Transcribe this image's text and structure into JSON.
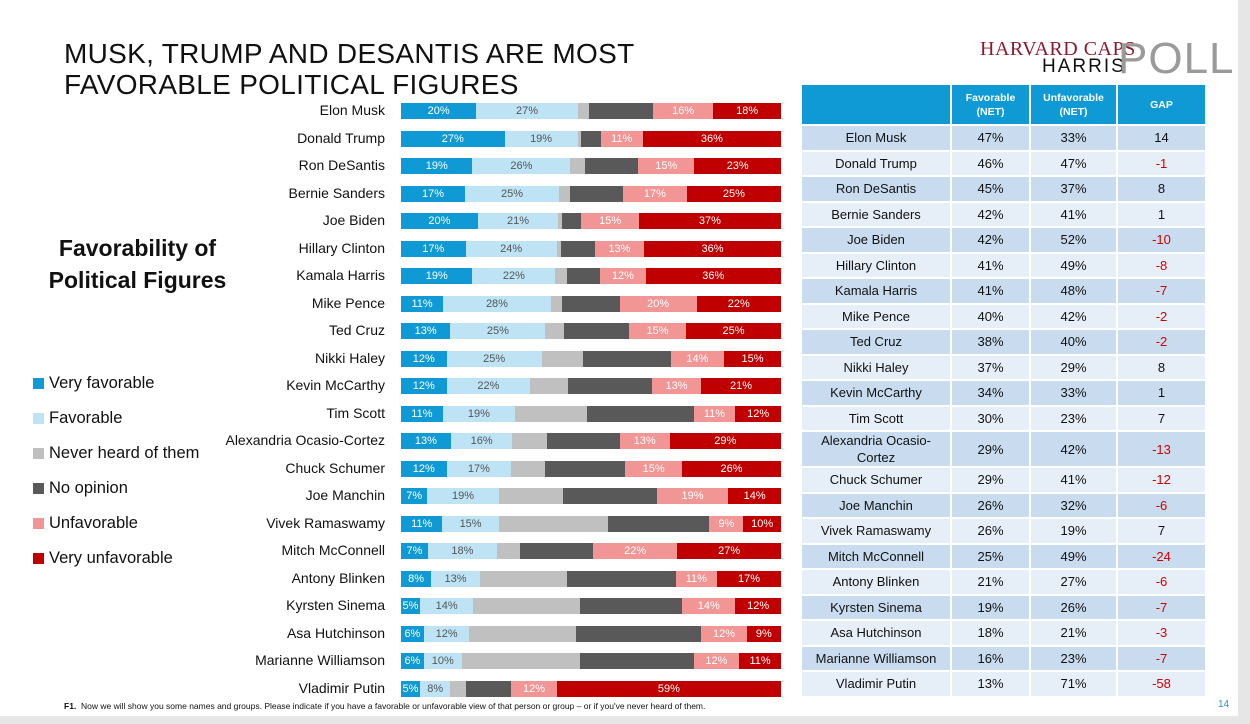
{
  "title": "MUSK, TRUMP AND DESANTIS ARE MOST FAVORABLE POLITICAL FIGURES",
  "logo": {
    "line1": "HARVARD CAPS",
    "line2": "HARRIS",
    "line3": "POLL"
  },
  "subtitle": "Favorability of Political Figures",
  "colors": {
    "very_favorable": "#0F9AD6",
    "favorable": "#BDE3F5",
    "never_heard": "#C0C0C0",
    "no_opinion": "#595959",
    "unfavorable": "#F29595",
    "very_unfavorable": "#C00000",
    "table_header": "#0F9AD6",
    "negative_gap": "#D00000"
  },
  "chart_data": {
    "type": "bar",
    "orientation": "horizontal-stacked-100",
    "title": "Favorability of Political Figures",
    "legend_position": "left",
    "series_names": [
      "Very favorable",
      "Favorable",
      "Never heard of them",
      "No opinion",
      "Unfavorable",
      "Very unfavorable"
    ],
    "categories": [
      "Elon Musk",
      "Donald Trump",
      "Ron DeSantis",
      "Bernie Sanders",
      "Joe Biden",
      "Hillary Clinton",
      "Kamala Harris",
      "Mike Pence",
      "Ted Cruz",
      "Nikki Haley",
      "Kevin McCarthy",
      "Tim Scott",
      "Alexandria Ocasio-Cortez",
      "Chuck Schumer",
      "Joe Manchin",
      "Vivek Ramaswamy",
      "Mitch McConnell",
      "Antony Blinken",
      "Kyrsten Sinema",
      "Asa Hutchinson",
      "Marianne Williamson",
      "Vladimir Putin"
    ],
    "series": [
      {
        "name": "Very favorable",
        "values": [
          20,
          27,
          19,
          17,
          20,
          17,
          19,
          11,
          13,
          12,
          12,
          11,
          13,
          12,
          7,
          11,
          7,
          8,
          5,
          6,
          6,
          5
        ],
        "labeled": true
      },
      {
        "name": "Favorable",
        "values": [
          27,
          19,
          26,
          25,
          21,
          24,
          22,
          28,
          25,
          25,
          22,
          19,
          16,
          17,
          19,
          15,
          18,
          13,
          14,
          12,
          10,
          8
        ],
        "labeled": true
      },
      {
        "name": "Never heard of them",
        "values": [
          3,
          1,
          4,
          3,
          1,
          1,
          3,
          3,
          5,
          11,
          10,
          19,
          9,
          9,
          17,
          29,
          6,
          23,
          28,
          28,
          31,
          4
        ],
        "labeled": false
      },
      {
        "name": "No opinion",
        "values": [
          17,
          5,
          14,
          14,
          5,
          9,
          9,
          15,
          17,
          23,
          22,
          28,
          19,
          21,
          25,
          27,
          19,
          29,
          27,
          33,
          30,
          12
        ],
        "labeled": false
      },
      {
        "name": "Unfavorable",
        "values": [
          16,
          11,
          15,
          17,
          15,
          13,
          12,
          20,
          15,
          14,
          13,
          11,
          13,
          15,
          19,
          9,
          22,
          11,
          14,
          12,
          12,
          12
        ],
        "labeled": true
      },
      {
        "name": "Very unfavorable",
        "values": [
          18,
          36,
          23,
          25,
          37,
          36,
          36,
          22,
          25,
          15,
          21,
          12,
          29,
          26,
          14,
          10,
          27,
          17,
          12,
          9,
          11,
          59
        ],
        "labeled": true
      }
    ],
    "unit": "%"
  },
  "table": {
    "headers": [
      "",
      "Favorable (NET)",
      "Unfavorable (NET)",
      "GAP"
    ],
    "rows": [
      [
        "Elon Musk",
        "47%",
        "33%",
        "14"
      ],
      [
        "Donald Trump",
        "46%",
        "47%",
        "-1"
      ],
      [
        "Ron DeSantis",
        "45%",
        "37%",
        "8"
      ],
      [
        "Bernie Sanders",
        "42%",
        "41%",
        "1"
      ],
      [
        "Joe Biden",
        "42%",
        "52%",
        "-10"
      ],
      [
        "Hillary Clinton",
        "41%",
        "49%",
        "-8"
      ],
      [
        "Kamala Harris",
        "41%",
        "48%",
        "-7"
      ],
      [
        "Mike Pence",
        "40%",
        "42%",
        "-2"
      ],
      [
        "Ted Cruz",
        "38%",
        "40%",
        "-2"
      ],
      [
        "Nikki Haley",
        "37%",
        "29%",
        "8"
      ],
      [
        "Kevin McCarthy",
        "34%",
        "33%",
        "1"
      ],
      [
        "Tim Scott",
        "30%",
        "23%",
        "7"
      ],
      [
        "Alexandria Ocasio-Cortez",
        "29%",
        "42%",
        "-13"
      ],
      [
        "Chuck Schumer",
        "29%",
        "41%",
        "-12"
      ],
      [
        "Joe Manchin",
        "26%",
        "32%",
        "-6"
      ],
      [
        "Vivek Ramaswamy",
        "26%",
        "19%",
        "7"
      ],
      [
        "Mitch McConnell",
        "25%",
        "49%",
        "-24"
      ],
      [
        "Antony Blinken",
        "21%",
        "27%",
        "-6"
      ],
      [
        "Kyrsten Sinema",
        "19%",
        "26%",
        "-7"
      ],
      [
        "Asa Hutchinson",
        "18%",
        "21%",
        "-3"
      ],
      [
        "Marianne Williamson",
        "16%",
        "23%",
        "-7"
      ],
      [
        "Vladimir Putin",
        "13%",
        "71%",
        "-58"
      ]
    ]
  },
  "footnote": {
    "label": "F1.",
    "text": "Now we will show you some names and groups. Please indicate if you have a favorable or unfavorable view of that person or group – or if you've never heard of them."
  },
  "page_number": "14"
}
